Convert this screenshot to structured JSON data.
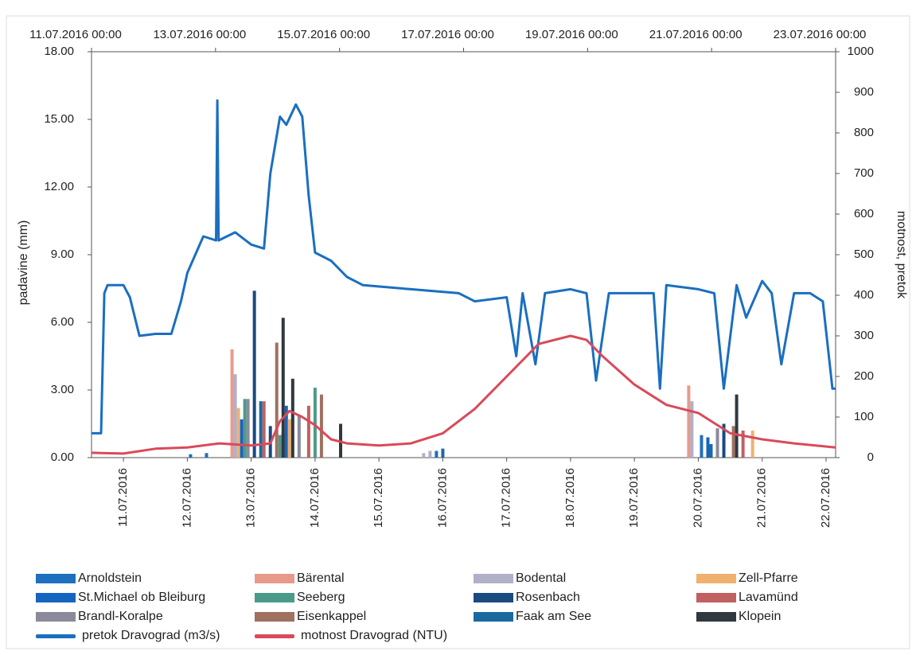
{
  "chart_data": {
    "type": "bar",
    "y_label": "padavine (mm)",
    "y2_label": "motnost, pretok",
    "xlim": [
      -0.5,
      11.15
    ],
    "xticks": [
      {
        "value": 0,
        "label": "11.07.2016"
      },
      {
        "value": 1,
        "label": "12.07.2016"
      },
      {
        "value": 2,
        "label": "13.07.2016"
      },
      {
        "value": 3,
        "label": "14.07.2016"
      },
      {
        "value": 4,
        "label": "15.07.2016"
      },
      {
        "value": 5,
        "label": "16.07.2016"
      },
      {
        "value": 6,
        "label": "17.07.2016"
      },
      {
        "value": 7,
        "label": "18.07.2016"
      },
      {
        "value": 8,
        "label": "19.07.2016"
      },
      {
        "value": 9,
        "label": "20.07.2016"
      },
      {
        "value": 10,
        "label": "21.07.2016"
      },
      {
        "value": 11,
        "label": "22.07.2016"
      }
    ],
    "x2lim": [
      0,
      12
    ],
    "x2ticks": [
      {
        "value": 0,
        "label": "11.07.2016 00:00"
      },
      {
        "value": 2,
        "label": "13.07.2016 00:00"
      },
      {
        "value": 4,
        "label": "15.07.2016 00:00"
      },
      {
        "value": 6,
        "label": "17.07.2016 00:00"
      },
      {
        "value": 8,
        "label": "19.07.2016 00:00"
      },
      {
        "value": 10,
        "label": "21.07.2016 00:00"
      },
      {
        "value": 12,
        "label": "23.07.2016 00:00"
      }
    ],
    "ylim": [
      0,
      18
    ],
    "yticks": [
      {
        "value": 0,
        "label": "0.00"
      },
      {
        "value": 3,
        "label": "3.00"
      },
      {
        "value": 6,
        "label": "6.00"
      },
      {
        "value": 9,
        "label": "9.00"
      },
      {
        "value": 12,
        "label": "12.00"
      },
      {
        "value": 15,
        "label": "15.00"
      },
      {
        "value": 18,
        "label": "18.00"
      }
    ],
    "y2lim": [
      0,
      1000
    ],
    "y2ticks": [
      0,
      100,
      200,
      300,
      400,
      500,
      600,
      700,
      800,
      900,
      1000
    ],
    "series": [
      {
        "name": "Arnoldstein",
        "type": "bar",
        "color": "#1f6fbf",
        "x": [
          1.05,
          1.3,
          2.5,
          4.9,
          9.05
        ],
        "values": [
          0.15,
          0.2,
          1.1,
          0.3,
          1.0
        ]
      },
      {
        "name": "St.Michael ob Bleiburg",
        "type": "bar",
        "color": "#1565c0",
        "x": [
          1.85,
          2.55,
          9.15
        ],
        "values": [
          1.7,
          2.3,
          0.9
        ]
      },
      {
        "name": "Brandl-Koralpe",
        "type": "bar",
        "color": "#8a8a9a",
        "x": [
          1.95,
          2.75,
          9.3
        ],
        "values": [
          2.6,
          1.9,
          1.3
        ]
      },
      {
        "name": "pretok Dravograd (m3/s)",
        "type": "line",
        "axis": "y2",
        "color": "#1a6fc0",
        "x": [
          -0.5,
          -0.35,
          -0.3,
          -0.25,
          0,
          0.1,
          0.25,
          0.5,
          0.75,
          0.9,
          1.0,
          1.25,
          1.45,
          1.47,
          1.49,
          1.75,
          2.0,
          2.2,
          2.3,
          2.45,
          2.55,
          2.7,
          2.8,
          2.9,
          3.0,
          3.25,
          3.5,
          3.75,
          4.5,
          5.25,
          5.5,
          6.0,
          6.15,
          6.25,
          6.45,
          6.6,
          7.0,
          7.25,
          7.4,
          7.6,
          8.0,
          8.3,
          8.4,
          8.5,
          9.0,
          9.25,
          9.4,
          9.6,
          9.75,
          10.0,
          10.15,
          10.3,
          10.5,
          10.75,
          10.95,
          11.1,
          11.15
        ],
        "values": [
          60,
          60,
          405,
          425,
          425,
          395,
          300,
          305,
          305,
          385,
          455,
          545,
          535,
          880,
          535,
          555,
          525,
          515,
          700,
          840,
          820,
          870,
          840,
          645,
          505,
          485,
          445,
          425,
          415,
          405,
          385,
          395,
          250,
          405,
          230,
          405,
          415,
          405,
          190,
          405,
          405,
          405,
          170,
          425,
          415,
          405,
          170,
          425,
          345,
          435,
          405,
          230,
          405,
          405,
          385,
          170,
          170
        ]
      },
      {
        "name": "Bärental",
        "type": "bar",
        "color": "#e89a8a",
        "x": [
          1.7,
          8.85
        ],
        "values": [
          4.8,
          3.2
        ]
      },
      {
        "name": "Seeberg",
        "type": "bar",
        "color": "#4a9a8a",
        "x": [
          1.9,
          2.45,
          3.0
        ],
        "values": [
          2.6,
          1.0,
          3.1
        ]
      },
      {
        "name": "Eisenkappel",
        "type": "bar",
        "color": "#a07060",
        "x": [
          2.4,
          3.1,
          9.55
        ],
        "values": [
          5.1,
          2.8,
          1.4
        ]
      },
      {
        "name": "motnost Dravograd (NTU)",
        "type": "line",
        "axis": "y2",
        "color": "#d94a5a",
        "x": [
          -0.5,
          0,
          0.5,
          1.0,
          1.5,
          2.0,
          2.3,
          2.45,
          2.6,
          2.8,
          3.0,
          3.25,
          3.5,
          4.0,
          4.5,
          5.0,
          5.5,
          6.0,
          6.5,
          7.0,
          7.25,
          7.5,
          8.0,
          8.5,
          9.0,
          9.5,
          10.0,
          10.5,
          11.15
        ],
        "values": [
          12,
          10,
          22,
          25,
          35,
          30,
          35,
          90,
          115,
          100,
          80,
          45,
          35,
          30,
          35,
          60,
          120,
          200,
          280,
          300,
          290,
          250,
          180,
          130,
          110,
          60,
          45,
          35,
          25
        ]
      },
      {
        "name": "Bodental",
        "type": "bar",
        "color": "#b0b0c8",
        "x": [
          1.75,
          4.7,
          4.8,
          8.9
        ],
        "values": [
          3.7,
          0.2,
          0.3,
          2.5
        ]
      },
      {
        "name": "Rosenbach",
        "type": "bar",
        "color": "#1a4a80",
        "x": [
          2.05,
          2.3,
          9.4
        ],
        "values": [
          7.4,
          1.4,
          1.5
        ]
      },
      {
        "name": "Faak am See",
        "type": "bar",
        "color": "#1a6aa0",
        "x": [
          2.15,
          5.0,
          9.2
        ],
        "values": [
          2.5,
          0.4,
          0.6
        ]
      },
      {
        "name": "Zell-Pfarre",
        "type": "bar",
        "color": "#f0b070",
        "x": [
          1.8,
          2.6,
          9.85
        ],
        "values": [
          2.2,
          1.7,
          1.2
        ]
      },
      {
        "name": "Lavamünd",
        "type": "bar",
        "color": "#c06060",
        "x": [
          2.2,
          2.9,
          9.7
        ],
        "values": [
          2.5,
          2.3,
          1.2
        ]
      },
      {
        "name": "Klopein",
        "type": "bar",
        "color": "#303840",
        "x": [
          2.5,
          2.65,
          3.4,
          9.6
        ],
        "values": [
          6.2,
          3.5,
          1.5,
          2.8
        ]
      }
    ]
  }
}
